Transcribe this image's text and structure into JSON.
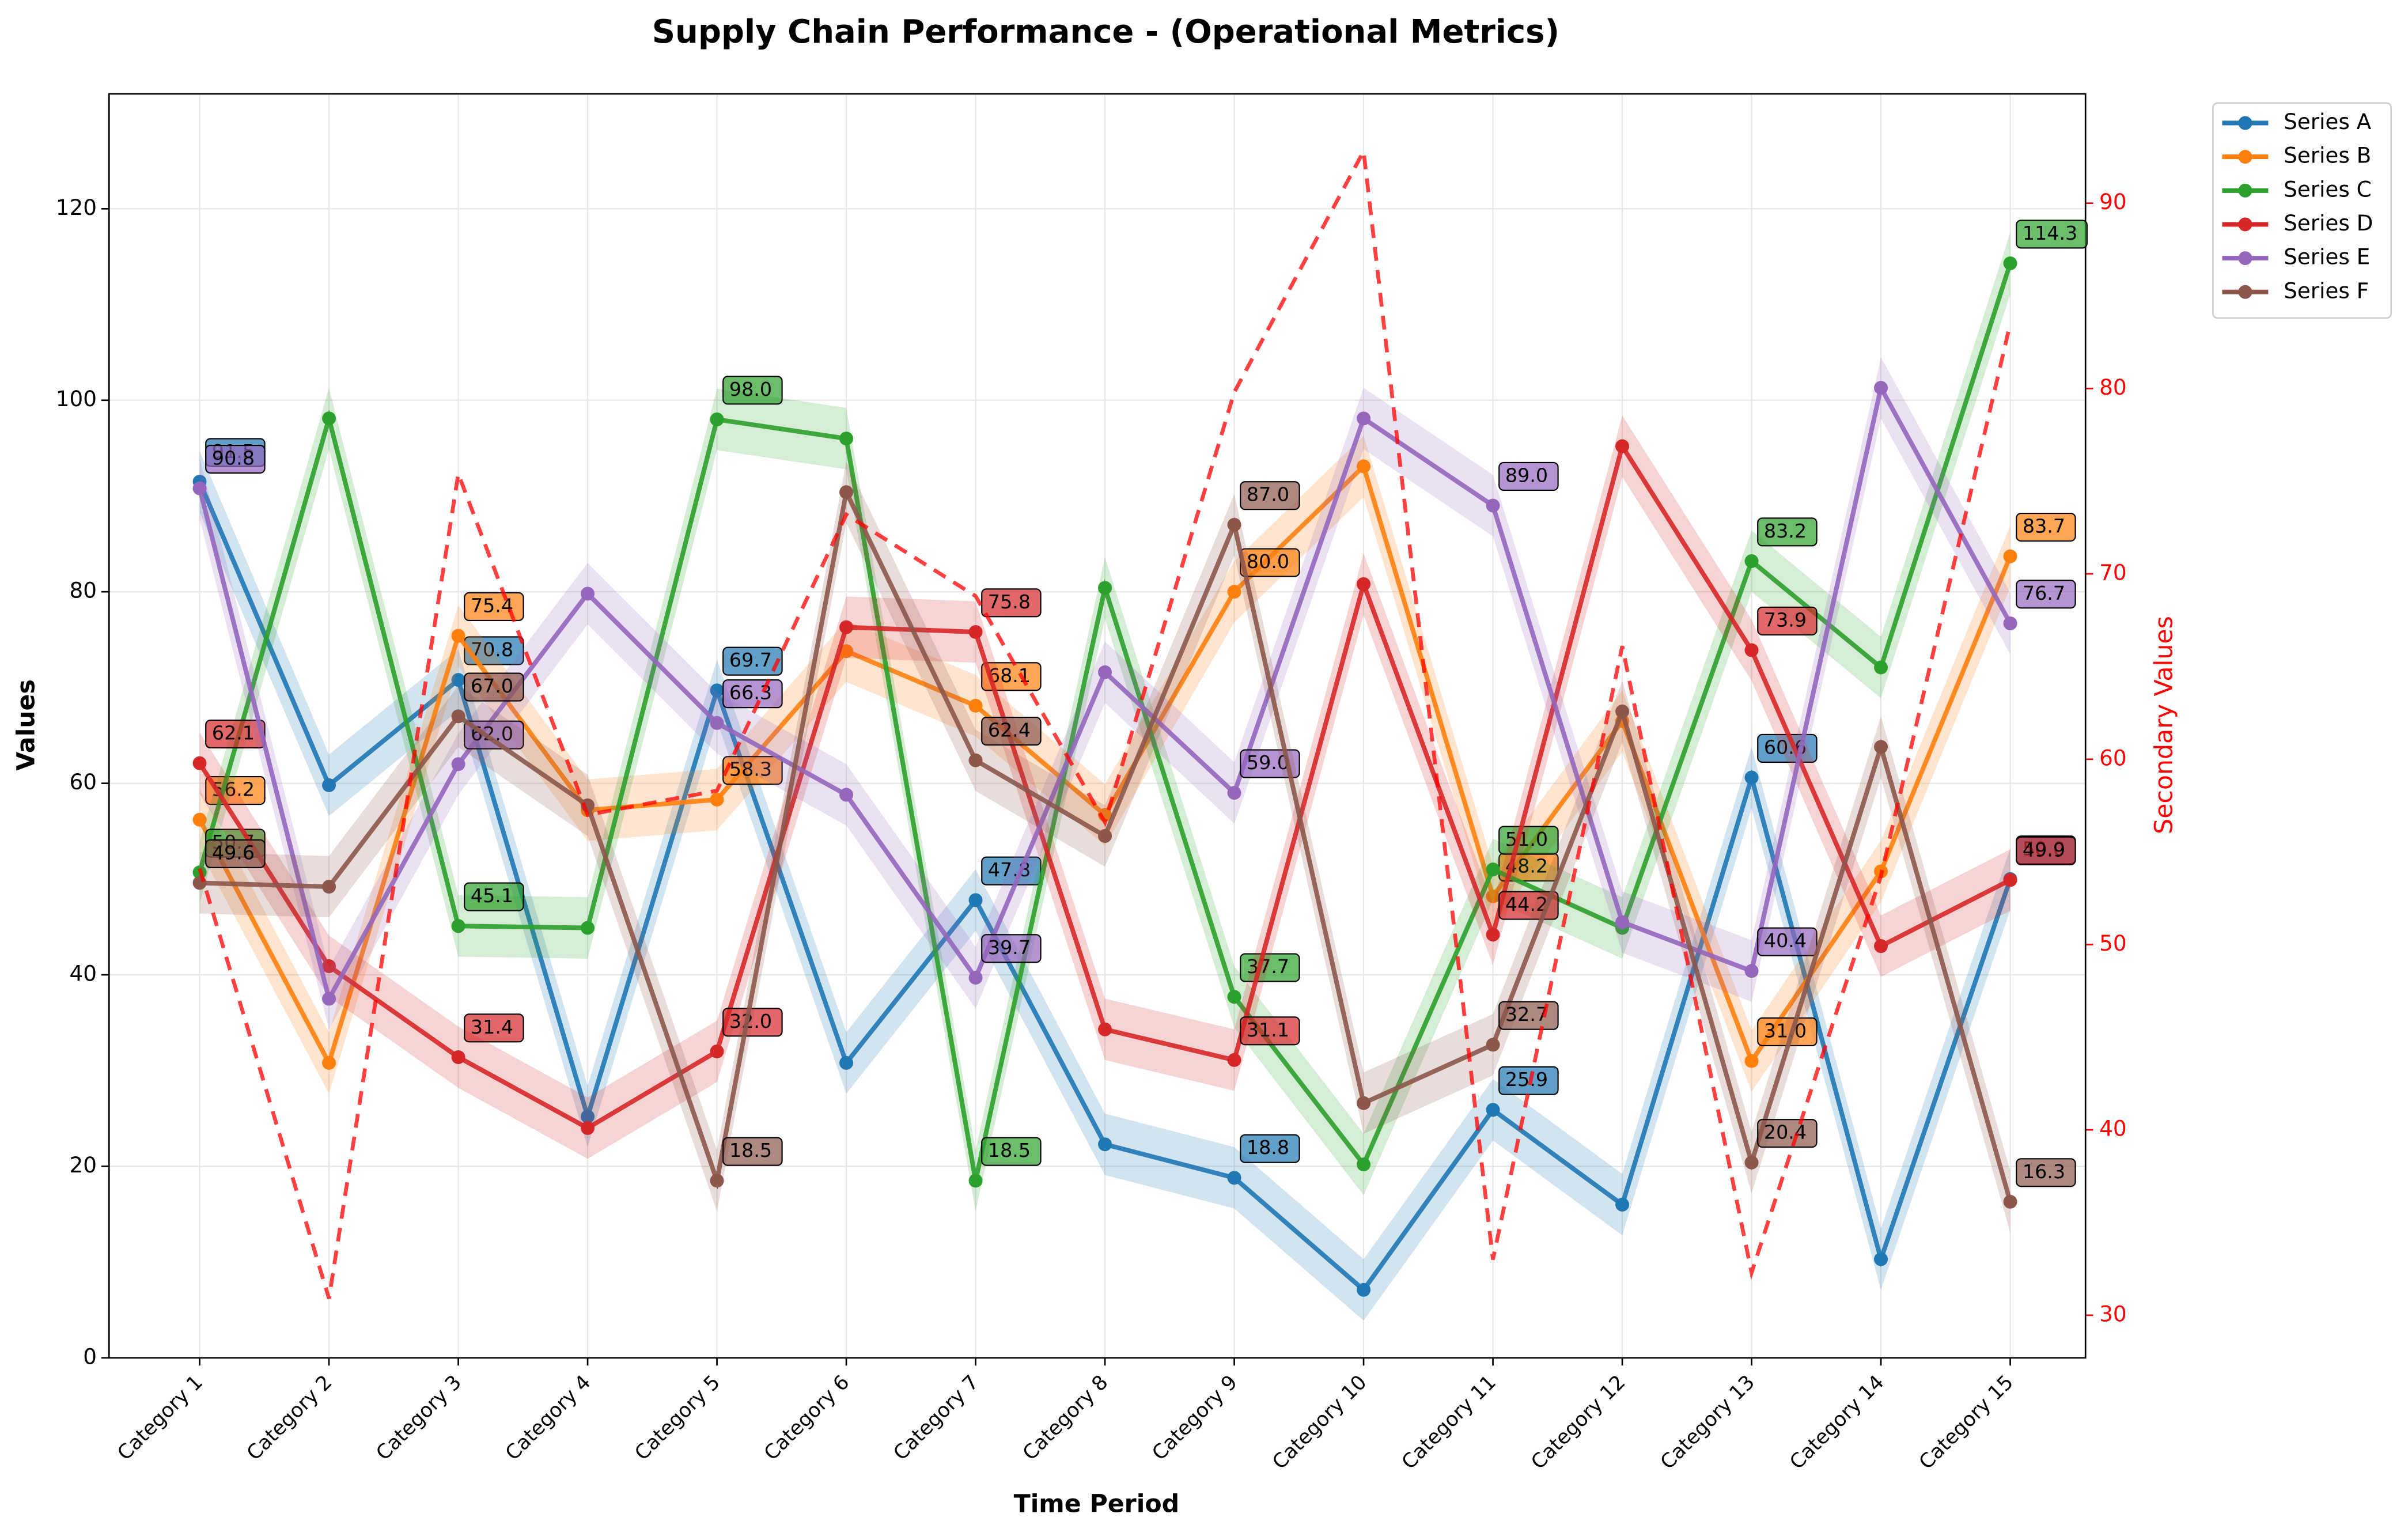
{
  "chart_data": {
    "type": "line",
    "title": "Supply Chain Performance - (Operational Metrics)",
    "x_label": "Time Period",
    "y_label": "Values",
    "y2_label": "Secondary Values",
    "categories": [
      "Category 1",
      "Category 2",
      "Category 3",
      "Category 4",
      "Category 5",
      "Category 6",
      "Category 7",
      "Category 8",
      "Category 9",
      "Category 10",
      "Category 11",
      "Category 12",
      "Category 13",
      "Category 14",
      "Category 15"
    ],
    "ylim": [
      0,
      132
    ],
    "yticks": [
      0,
      20,
      40,
      60,
      80,
      100,
      120
    ],
    "y2lim": [
      27.7,
      95.9
    ],
    "y2ticks": [
      30,
      40,
      50,
      60,
      70,
      80,
      90
    ],
    "grid": true,
    "legend": "upper right",
    "series": [
      {
        "name": "Series A",
        "color": "#1f77b4",
        "values": [
          91.5,
          59.8,
          70.8,
          25.2,
          69.7,
          30.8,
          47.8,
          22.3,
          18.8,
          7.1,
          25.9,
          16.0,
          60.6,
          10.3,
          50.0
        ],
        "value_labels": [
          "91.5",
          null,
          "70.8",
          null,
          "69.7",
          null,
          "47.8",
          null,
          "18.8",
          null,
          "25.9",
          null,
          "60.6",
          null,
          "50.0"
        ]
      },
      {
        "name": "Series B",
        "color": "#ff7f0e",
        "values": [
          56.2,
          30.8,
          75.4,
          57.2,
          58.3,
          73.8,
          68.1,
          56.7,
          80.0,
          93.1,
          48.2,
          66.5,
          31.0,
          50.8,
          83.7
        ],
        "value_labels": [
          "56.2",
          null,
          "75.4",
          null,
          "58.3",
          null,
          "68.1",
          null,
          "80.0",
          null,
          "48.2",
          null,
          "31.0",
          null,
          "83.7"
        ]
      },
      {
        "name": "Series C",
        "color": "#2ca02c",
        "values": [
          50.7,
          98.1,
          45.1,
          44.9,
          98.0,
          96.0,
          18.5,
          80.4,
          37.7,
          20.2,
          51.0,
          44.9,
          83.2,
          72.1,
          114.3
        ],
        "value_labels": [
          "50.7",
          null,
          "45.1",
          null,
          "98.0",
          null,
          "18.5",
          null,
          "37.7",
          null,
          "51.0",
          null,
          "83.2",
          null,
          "114.3"
        ]
      },
      {
        "name": "Series D",
        "color": "#d62728",
        "values": [
          62.1,
          40.9,
          31.4,
          24.0,
          32.0,
          76.3,
          75.8,
          34.3,
          31.1,
          80.8,
          44.2,
          95.2,
          73.9,
          43.0,
          49.9
        ],
        "value_labels": [
          "62.1",
          null,
          "31.4",
          null,
          "32.0",
          null,
          "75.8",
          null,
          "31.1",
          null,
          "44.2",
          null,
          "73.9",
          null,
          "49.9"
        ]
      },
      {
        "name": "Series E",
        "color": "#9467bd",
        "values": [
          90.8,
          37.5,
          62.0,
          79.8,
          66.3,
          58.8,
          39.7,
          71.6,
          59.0,
          98.1,
          89.0,
          45.5,
          40.4,
          101.3,
          76.7
        ],
        "value_labels": [
          "90.8",
          null,
          "62.0",
          null,
          "66.3",
          null,
          "39.7",
          null,
          "59.0",
          null,
          "89.0",
          null,
          "40.4",
          null,
          "76.7"
        ]
      },
      {
        "name": "Series F",
        "color": "#8c564b",
        "values": [
          49.6,
          49.2,
          67.0,
          57.7,
          18.5,
          90.4,
          62.4,
          54.5,
          87.0,
          26.6,
          32.7,
          67.5,
          20.4,
          63.8,
          16.3
        ],
        "value_labels": [
          "49.6",
          null,
          "67.0",
          null,
          "18.5",
          null,
          "62.4",
          null,
          "87.0",
          null,
          "32.7",
          null,
          "20.4",
          null,
          "16.3"
        ]
      },
      {
        "color": "#ff0000",
        "axis": "y2",
        "dashed": true,
        "values": [
          54.1,
          30.9,
          75.4,
          57.0,
          58.3,
          73.2,
          68.8,
          56.6,
          79.8,
          92.8,
          33.0,
          66.1,
          32.3,
          53.7,
          83.5
        ]
      }
    ]
  }
}
